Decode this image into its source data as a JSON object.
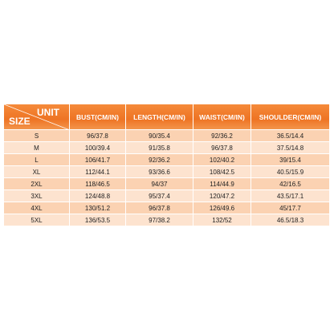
{
  "header": {
    "unit": "UNIT",
    "size": "SIZE",
    "columns": [
      "BUST(CM/IN)",
      "LENGTH(CM/IN)",
      "WAIST(CM/IN)",
      "SHOULDER(CM/IN)"
    ]
  },
  "table": {
    "rows": [
      [
        "S",
        "96/37.8",
        "90/35.4",
        "92/36.2",
        "36.5/14.4"
      ],
      [
        "M",
        "100/39.4",
        "91/35.8",
        "96/37.8",
        "37.5/14.8"
      ],
      [
        "L",
        "106/41.7",
        "92/36.2",
        "102/40.2",
        "39/15.4"
      ],
      [
        "XL",
        "112/44.1",
        "93/36.6",
        "108/42.5",
        "40.5/15.9"
      ],
      [
        "2XL",
        "118/46.5",
        "94/37",
        "114/44.9",
        "42/16.5"
      ],
      [
        "3XL",
        "124/48.8",
        "95/37.4",
        "120/47.2",
        "43.5/17.1"
      ],
      [
        "4XL",
        "130/51.2",
        "96/37.8",
        "126/49.6",
        "45/17.7"
      ],
      [
        "5XL",
        "136/53.5",
        "97/38.2",
        "132/52",
        "46.5/18.3"
      ]
    ]
  }
}
